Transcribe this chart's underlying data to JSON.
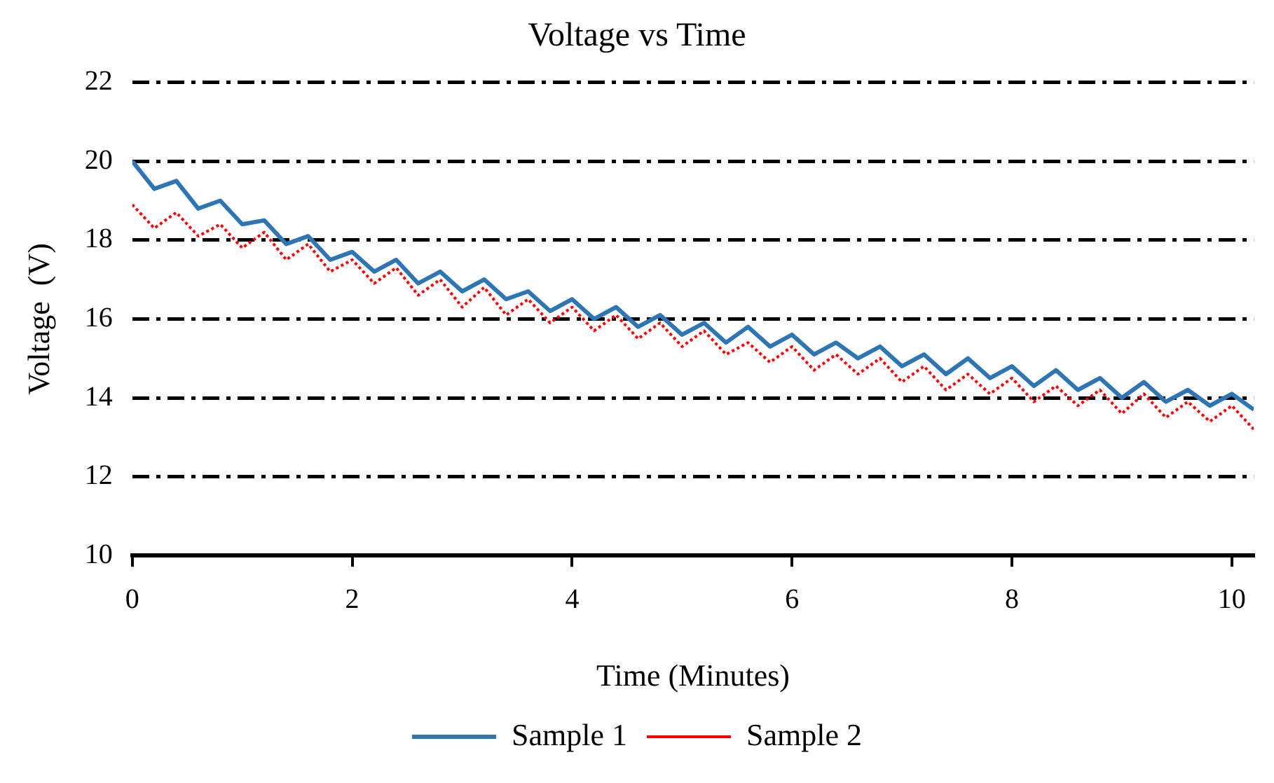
{
  "chart_data": {
    "type": "line",
    "title": "Voltage vs Time",
    "xlabel": "Time (Minutes)",
    "ylabel": "Voltage  (V)",
    "x": [
      0,
      0.2,
      0.4,
      0.6,
      0.8,
      1,
      1.2,
      1.4,
      1.6,
      1.8,
      2,
      2.2,
      2.4,
      2.6,
      2.8,
      3,
      3.2,
      3.4,
      3.6,
      3.8,
      4,
      4.2,
      4.4,
      4.6,
      4.8,
      5,
      5.2,
      5.4,
      5.6,
      5.8,
      6,
      6.2,
      6.4,
      6.6,
      6.8,
      7,
      7.2,
      7.4,
      7.6,
      7.8,
      8,
      8.2,
      8.4,
      8.6,
      8.8,
      9,
      9.2,
      9.4,
      9.6,
      9.8,
      10,
      10.2
    ],
    "series": [
      {
        "name": "Sample 1",
        "color": "#2e75b6",
        "line_style": "solid",
        "values": [
          20.0,
          19.3,
          19.5,
          18.8,
          19.0,
          18.4,
          18.5,
          17.9,
          18.1,
          17.5,
          17.7,
          17.2,
          17.5,
          16.9,
          17.2,
          16.7,
          17.0,
          16.5,
          16.7,
          16.2,
          16.5,
          16.0,
          16.3,
          15.8,
          16.1,
          15.6,
          15.9,
          15.4,
          15.8,
          15.3,
          15.6,
          15.1,
          15.4,
          15.0,
          15.3,
          14.8,
          15.1,
          14.6,
          15.0,
          14.5,
          14.8,
          14.3,
          14.7,
          14.2,
          14.5,
          14.0,
          14.4,
          13.9,
          14.2,
          13.8,
          14.1,
          13.7
        ]
      },
      {
        "name": "Sample 2",
        "color": "#ff0000",
        "line_style": "dotted",
        "values": [
          18.9,
          18.3,
          18.7,
          18.1,
          18.4,
          17.8,
          18.2,
          17.5,
          17.9,
          17.2,
          17.5,
          16.9,
          17.3,
          16.6,
          17.0,
          16.3,
          16.8,
          16.1,
          16.5,
          15.9,
          16.3,
          15.7,
          16.1,
          15.5,
          15.9,
          15.3,
          15.7,
          15.1,
          15.4,
          14.9,
          15.3,
          14.7,
          15.1,
          14.6,
          15.0,
          14.4,
          14.8,
          14.2,
          14.6,
          14.1,
          14.5,
          13.9,
          14.3,
          13.8,
          14.2,
          13.6,
          14.1,
          13.5,
          13.9,
          13.4,
          13.8,
          13.2
        ]
      }
    ],
    "xlim": [
      0,
      10.2
    ],
    "xticks": [
      0,
      2,
      4,
      6,
      8,
      10
    ],
    "ylim": [
      10,
      22
    ],
    "yticks": [
      10,
      12,
      14,
      16,
      18,
      20,
      22
    ],
    "grid": "y",
    "legend": "bottom",
    "marker": "none"
  }
}
